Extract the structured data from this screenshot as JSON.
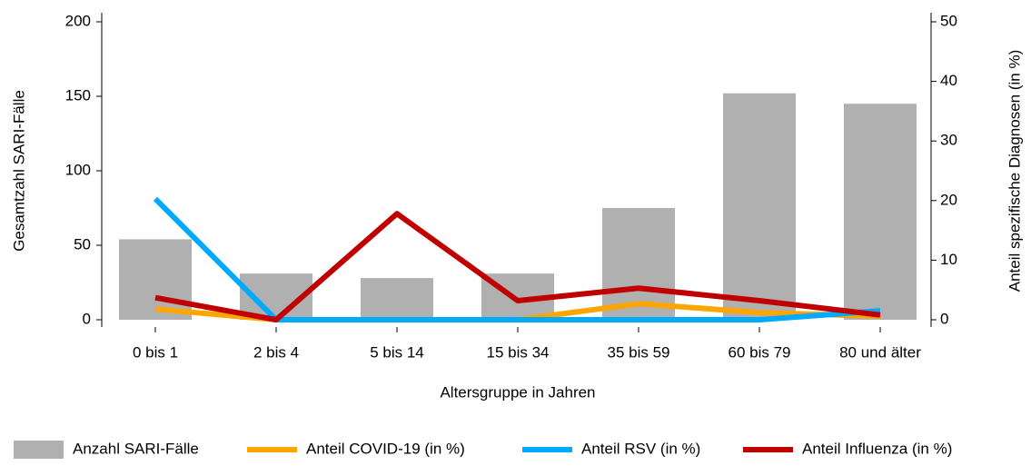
{
  "chart_data": {
    "type": "bar",
    "xlabel": "Altersgruppe in Jahren",
    "ylabel": "Gesamtzahl SARI-Fälle",
    "y2label": "Anteil spezifische Diagnosen (in %)",
    "categories": [
      "0 bis 1",
      "2 bis 4",
      "5 bis 14",
      "15 bis 34",
      "35 bis 59",
      "60 bis 79",
      "80 und älter"
    ],
    "series": [
      {
        "name": "Anzahl SARI-Fälle",
        "type": "bar",
        "color": "#b0b0b0",
        "values": [
          54,
          31,
          28,
          31,
          75,
          152,
          145
        ]
      },
      {
        "name": "Anteil COVID-19 (in %)",
        "type": "line",
        "axis": "y2",
        "color": "#ffa500",
        "values": [
          1.8,
          0,
          0,
          0,
          2.7,
          1.2,
          0.6
        ]
      },
      {
        "name": "Anteil RSV (in %)",
        "type": "line",
        "axis": "y2",
        "color": "#00aaff",
        "values": [
          20.3,
          0,
          0,
          0,
          0,
          0,
          1.5
        ]
      },
      {
        "name": "Anteil Influenza (in %)",
        "type": "line",
        "axis": "y2",
        "color": "#c00000",
        "values": [
          3.7,
          0,
          17.8,
          3.2,
          5.3,
          3.2,
          0.8
        ]
      }
    ],
    "ylim": [
      0,
      200
    ],
    "yticks": [
      0,
      50,
      100,
      150,
      200
    ],
    "y2lim": [
      0,
      50
    ],
    "y2ticks": [
      0,
      10,
      20,
      30,
      40,
      50
    ],
    "legend": "bottom"
  }
}
